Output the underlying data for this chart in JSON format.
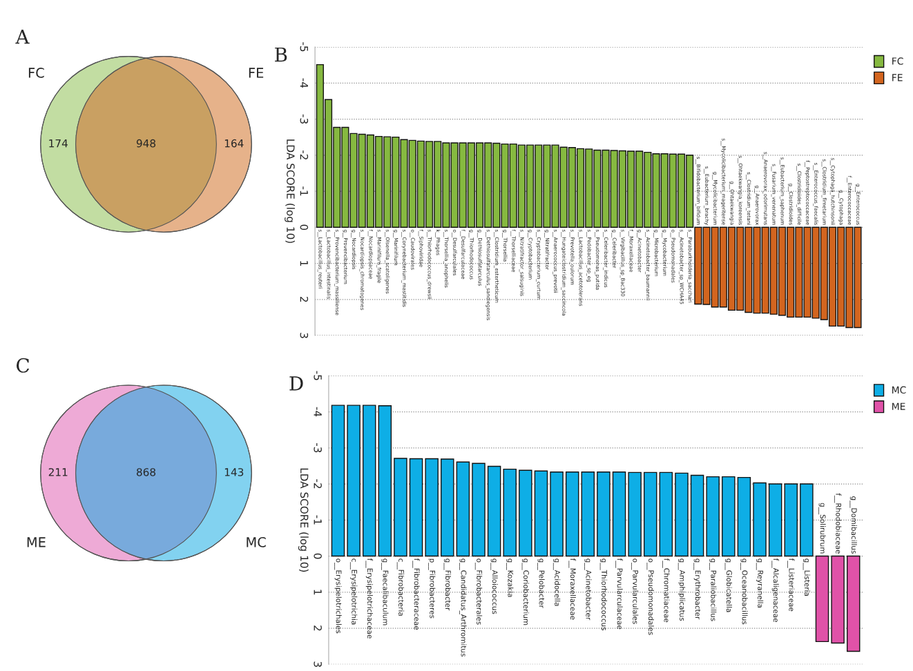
{
  "chart_data": [
    {
      "type": "other",
      "title": "A",
      "categories": [
        "FC",
        null,
        "FE"
      ],
      "values": [
        174,
        948,
        164
      ],
      "data_labels": true,
      "colors": [
        "#c2dda2",
        "#c9a062",
        "#e6b28a"
      ]
    },
    {
      "type": "bar",
      "title": "B",
      "ylabel": "LDA SCORE (log 10)",
      "ylim": [
        3,
        -5
      ],
      "yticks": [
        -5,
        -4,
        -3,
        -2,
        -1,
        0,
        1,
        2,
        3
      ],
      "grid": "y",
      "legend": "top right",
      "categories": [
        "s__Lactobacillus_reuteri",
        "s__Lactobacillus_intestinalis",
        "s__Provencibacterium_massiliense",
        "g__Provencibacterium",
        "g__Nocardiopsis",
        "s__Nocardiopsis_chromatogenes",
        "f__Nocardiopsaceae",
        "s__Marinifilum_fragile",
        "s__Olsenella_scatoligenes",
        "g__Marinifilum",
        "s__Corynebacterium_mastitidis",
        "o__Caudovirales",
        "f__Siphoviridae",
        "s__Thiorhodococcus_drewsii",
        "k__Phages",
        "s__Thorsellia_anophelis",
        "o__Desulfarculales",
        "f__Desulfarculaceae",
        "g__Thiorhodococcus",
        "g__Dethiosulfatarculus",
        "s__Dethiosulfatarculus_sandiegensis",
        "s__Clostridium_estertheticum",
        "g__Thorsellia",
        "f__Thorselliaceae",
        "s__Nitratifractor_salsuginis",
        "g__Cryptobacterium",
        "s__Cryptobacterium_curtum",
        "g__Nitratifractor",
        "s__Anaerococcus_prevotii",
        "s__Hungateiclostridium_saccincola",
        "s__Prevotella_oulorum",
        "s__Lactobacillus_acetotolerans",
        "s__Pedobacter_sp_eg",
        "s__Pseudomonas_putida",
        "s__Celeribacter_indicus",
        "g__Celeribacter",
        "s__Virgibacillus_sp_Bac330",
        "f__Moraxellaceae",
        "g__Acinetobacter",
        "s__Acinetobacter_baumannii",
        "g__Microbacterium",
        "g__Mycobacterium",
        "o__Pseudomonadales",
        "s__Acinetobacter_sp_WCHA45",
        "s__Paraburkholderia_sacchari",
        "s__Bifidobacterium_bifidum",
        "s__Eubacterium_brachy",
        "g__Mycolicibacterium",
        "s__Mycolicibacterium_mageritense",
        "g__Ohtaekwangia",
        "s__Ohtaekwangia_koreensis",
        "s__Clostridium_tetani",
        "g__Anaerovorax",
        "s__Anaerovorax_odorimutans",
        "s__Fusarium_venenatum",
        "s__Eubacterium_saphenum",
        "g__Clostridioides",
        "s__Clostridioides_difficile",
        "f__Peptostreptococcaceae",
        "s__Enterococcus_faecalis",
        "s__Clostridium_fimetarium",
        "s__Cytophaga_hutchinsonii",
        "g__Cytophaga",
        "f__Enterococcaceae",
        "g__Enterococcus"
      ],
      "series": [
        {
          "name": "FC",
          "color": "#86b940",
          "values": [
            -4.51,
            -3.54,
            -2.77,
            -2.77,
            -2.6,
            -2.58,
            -2.56,
            -2.52,
            -2.51,
            -2.5,
            -2.43,
            -2.41,
            -2.39,
            -2.38,
            -2.38,
            -2.34,
            -2.34,
            -2.34,
            -2.34,
            -2.34,
            -2.34,
            -2.33,
            -2.31,
            -2.31,
            -2.28,
            -2.28,
            -2.28,
            -2.28,
            -2.28,
            -2.22,
            -2.21,
            -2.18,
            -2.17,
            -2.14,
            -2.14,
            -2.13,
            -2.12,
            -2.11,
            -2.11,
            -2.08,
            -2.04,
            -2.04,
            -2.03,
            -2.03,
            -2.0,
            null,
            null,
            null,
            null,
            null,
            null,
            null,
            null,
            null,
            null,
            null,
            null,
            null,
            null,
            null,
            null,
            null,
            null,
            null,
            null
          ]
        },
        {
          "name": "FE",
          "color": "#d3651f",
          "values": [
            null,
            null,
            null,
            null,
            null,
            null,
            null,
            null,
            null,
            null,
            null,
            null,
            null,
            null,
            null,
            null,
            null,
            null,
            null,
            null,
            null,
            null,
            null,
            null,
            null,
            null,
            null,
            null,
            null,
            null,
            null,
            null,
            null,
            null,
            null,
            null,
            null,
            null,
            null,
            null,
            null,
            null,
            null,
            null,
            null,
            2.13,
            2.14,
            2.21,
            2.21,
            2.3,
            2.3,
            2.36,
            2.38,
            2.38,
            2.41,
            2.44,
            2.49,
            2.49,
            2.49,
            2.52,
            2.56,
            2.74,
            2.74,
            2.78,
            2.78
          ]
        }
      ]
    },
    {
      "type": "other",
      "title": "C",
      "categories": [
        "ME",
        null,
        "MC"
      ],
      "values": [
        211,
        868,
        143
      ],
      "data_labels": true,
      "colors": [
        "#eeaad6",
        "#78aadc",
        "#82d2f0"
      ]
    },
    {
      "type": "bar",
      "title": "D",
      "ylabel": "LDA SCORE (log 10)",
      "ylim": [
        3,
        -5
      ],
      "yticks": [
        -5,
        -4,
        -3,
        -2,
        -1,
        0,
        1,
        2,
        3
      ],
      "grid": "y",
      "legend": "top right",
      "categories": [
        "o__Erysipelotrichales",
        "c__Erysipelotrichia",
        "f__Erysipelotrichaceae",
        "g__Faecalibaculum",
        "c__Fibrobacteria",
        "f__Fibrobacteraceae",
        "p__Fibrobacteres",
        "g__Fibrobacter",
        "g__Candidatus_Arthromitus",
        "o__Fibrobacterales",
        "g__Alloiococcus",
        "g__Kozakia",
        "g__Coriobacterium",
        "g__Pelobacter",
        "g__Acidocella",
        "f__Moraxellaceae",
        "g__Acinetobacter",
        "g__Thiorhodococcus",
        "f__Parvularculaceae",
        "o__Parvularculales",
        "o__Pseudomonadales",
        "f__Chromatiaceae",
        "g__Amphiplicatus",
        "g__Erythrobacter",
        "g__Paraliobacillus",
        "g__Globicatella",
        "g__Oceanobacillus",
        "g__Reyranella",
        "f__Alcaligenaceae",
        "f__Listeriaceae",
        "g__Listeria",
        "g__Solirubrum",
        "f__Rhodobiaceae",
        "g__Domibacillus"
      ],
      "series": [
        {
          "name": "MC",
          "color": "#0eaee6",
          "values": [
            -4.18,
            -4.18,
            -4.18,
            -4.17,
            -2.71,
            -2.7,
            -2.7,
            -2.69,
            -2.61,
            -2.57,
            -2.49,
            -2.41,
            -2.38,
            -2.36,
            -2.33,
            -2.33,
            -2.33,
            -2.33,
            -2.33,
            -2.32,
            -2.32,
            -2.32,
            -2.3,
            -2.24,
            -2.2,
            -2.2,
            -2.18,
            -2.03,
            -2.0,
            -2.0,
            -2.0,
            null,
            null,
            null
          ]
        },
        {
          "name": "ME",
          "color": "#e052a8",
          "values": [
            null,
            null,
            null,
            null,
            null,
            null,
            null,
            null,
            null,
            null,
            null,
            null,
            null,
            null,
            null,
            null,
            null,
            null,
            null,
            null,
            null,
            null,
            null,
            null,
            null,
            null,
            null,
            null,
            null,
            null,
            null,
            2.37,
            2.41,
            2.64
          ]
        }
      ]
    }
  ]
}
